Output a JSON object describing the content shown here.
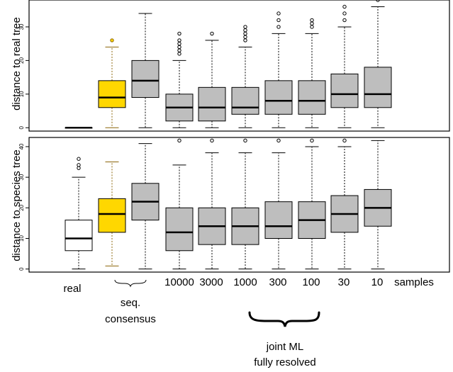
{
  "chart_data": [
    {
      "type": "box",
      "ylabel": "distance to real tree",
      "ylim": [
        -1,
        38
      ],
      "yticks": [
        0,
        10,
        20,
        30
      ],
      "boxes": [
        {
          "group": "real",
          "stats": [
            0,
            0,
            0,
            0,
            0
          ],
          "outliers": [],
          "color": "#000000"
        },
        {
          "group": "seq. consensus A",
          "stats": [
            0,
            6,
            9,
            14,
            24
          ],
          "outliers": [
            26
          ],
          "color": "#FFD700"
        },
        {
          "group": "seq. consensus B",
          "stats": [
            0,
            9,
            14,
            20,
            34
          ],
          "outliers": [],
          "color": "#BEBEBE"
        },
        {
          "group": "10000",
          "stats": [
            0,
            2,
            6,
            10,
            20
          ],
          "outliers": [
            22,
            23,
            24,
            25,
            26,
            28
          ],
          "color": "#BEBEBE"
        },
        {
          "group": "3000",
          "stats": [
            0,
            2,
            6,
            12,
            26
          ],
          "outliers": [
            28
          ],
          "color": "#BEBEBE"
        },
        {
          "group": "1000",
          "stats": [
            0,
            4,
            6,
            12,
            24
          ],
          "outliers": [
            26,
            27,
            28,
            29,
            30
          ],
          "color": "#BEBEBE"
        },
        {
          "group": "300",
          "stats": [
            0,
            4,
            8,
            14,
            28
          ],
          "outliers": [
            30,
            32,
            34
          ],
          "color": "#BEBEBE"
        },
        {
          "group": "100",
          "stats": [
            0,
            4,
            8,
            14,
            28
          ],
          "outliers": [
            30,
            31,
            32
          ],
          "color": "#BEBEBE"
        },
        {
          "group": "30",
          "stats": [
            0,
            6,
            10,
            16,
            30
          ],
          "outliers": [
            32,
            34,
            36
          ],
          "color": "#BEBEBE"
        },
        {
          "group": "10",
          "stats": [
            0,
            6,
            10,
            18,
            36
          ],
          "outliers": [
            38
          ],
          "color": "#BEBEBE"
        }
      ]
    },
    {
      "type": "box",
      "ylabel": "distance to species tree",
      "ylim": [
        -1,
        43
      ],
      "yticks": [
        0,
        10,
        20,
        30,
        40
      ],
      "boxes": [
        {
          "group": "real",
          "stats": [
            0,
            6,
            10,
            16,
            30
          ],
          "outliers": [
            33,
            34,
            36
          ],
          "color": "#FFFFFF"
        },
        {
          "group": "seq. consensus A",
          "stats": [
            1,
            12,
            18,
            23,
            35
          ],
          "outliers": [],
          "color": "#FFD700"
        },
        {
          "group": "seq. consensus B",
          "stats": [
            0,
            16,
            22,
            28,
            41
          ],
          "outliers": [],
          "color": "#BEBEBE"
        },
        {
          "group": "10000",
          "stats": [
            0,
            6,
            12,
            20,
            34
          ],
          "outliers": [
            42
          ],
          "color": "#BEBEBE"
        },
        {
          "group": "3000",
          "stats": [
            0,
            8,
            14,
            20,
            38
          ],
          "outliers": [
            42
          ],
          "color": "#BEBEBE"
        },
        {
          "group": "1000",
          "stats": [
            0,
            8,
            14,
            20,
            38
          ],
          "outliers": [
            42
          ],
          "color": "#BEBEBE"
        },
        {
          "group": "300",
          "stats": [
            0,
            10,
            14,
            22,
            38
          ],
          "outliers": [
            42
          ],
          "color": "#BEBEBE"
        },
        {
          "group": "100",
          "stats": [
            0,
            10,
            16,
            22,
            40
          ],
          "outliers": [
            42
          ],
          "color": "#BEBEBE"
        },
        {
          "group": "30",
          "stats": [
            0,
            12,
            18,
            24,
            40
          ],
          "outliers": [
            42
          ],
          "color": "#BEBEBE"
        },
        {
          "group": "10",
          "stats": [
            0,
            14,
            20,
            26,
            42
          ],
          "outliers": [],
          "color": "#BEBEBE"
        }
      ]
    }
  ],
  "x_labels": [
    "real",
    "10000",
    "3000",
    "1000",
    "300",
    "100",
    "30",
    "10",
    "samples"
  ],
  "annotations": {
    "seq_line1": "seq.",
    "seq_line2": "consensus",
    "joint_line1": "joint ML",
    "joint_line2": "fully resolved"
  },
  "colors": {
    "gold": "#FFD700",
    "gold_dark": "#8B6508",
    "grey": "#BEBEBE"
  }
}
